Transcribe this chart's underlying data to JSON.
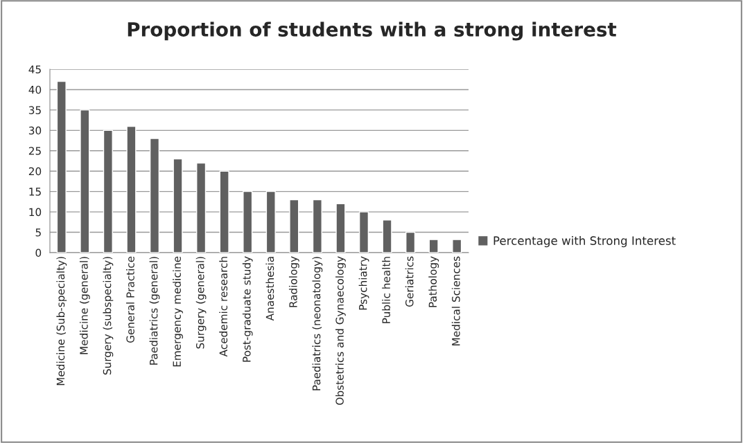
{
  "chart_data": {
    "type": "bar",
    "title": "Proportion of students with a strong interest",
    "categories": [
      "Medicine (Sub-specialty)",
      "Medicine (general)",
      "Surgery (subspecialty)",
      "General Practice",
      "Paediatrics (general)",
      "Emergency medicine",
      "Surgery (general)",
      "Acedemic research",
      "Post-graduate study",
      "Anaesthesia",
      "Radiology",
      "Paediatrics (neonatology)",
      "Obstetrics and Gynaecology",
      "Psychiatry",
      "Public health",
      "Geriatrics",
      "Pathology",
      "Medical Sciences"
    ],
    "series": [
      {
        "name": "Percentage with Strong Interest",
        "color": "#606060",
        "values": [
          42,
          35,
          30,
          31,
          28,
          23,
          22,
          20,
          15,
          15,
          13,
          13,
          12,
          10,
          8,
          5,
          3.2,
          3.2
        ]
      }
    ],
    "ylim": [
      0,
      45
    ],
    "yticks": [
      0,
      5,
      10,
      15,
      20,
      25,
      30,
      35,
      40,
      45
    ],
    "grid": "y",
    "legend": "right"
  }
}
